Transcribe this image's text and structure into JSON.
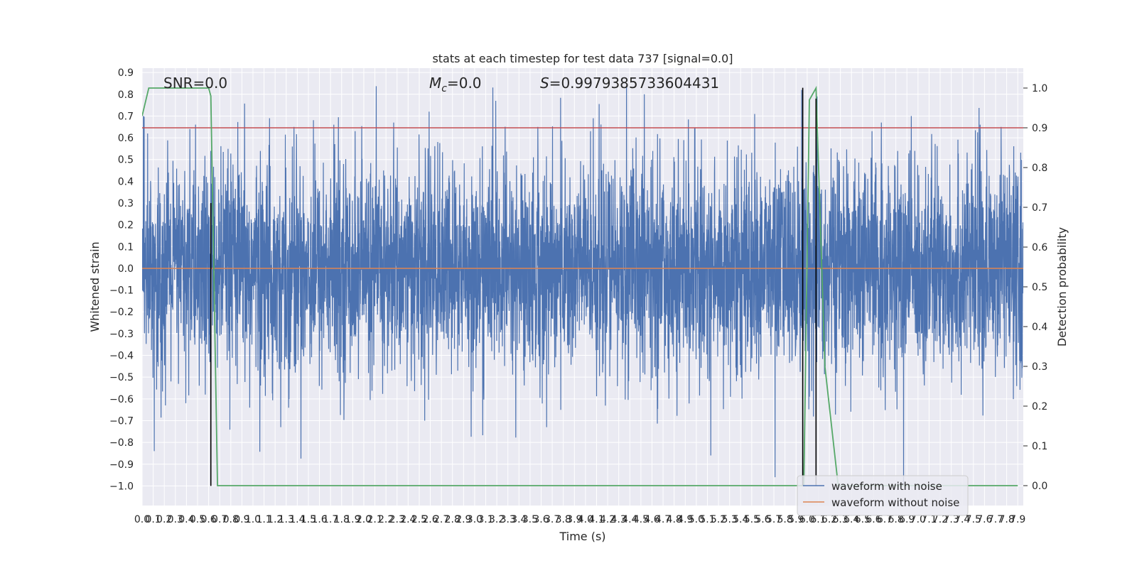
{
  "chart_data": {
    "type": "line",
    "title": "stats at each timestep for test data 737 [signal=0.0]",
    "xlabel": "Time (s)",
    "ylabel": "Whitened strain",
    "ylabel_right": "Detection probability",
    "xlim": [
      0.0,
      7.95
    ],
    "ylim": [
      -1.09,
      0.92
    ],
    "ylim_right": [
      -0.05,
      1.05
    ],
    "x_ticks": [
      "0.0",
      "0.1",
      "0.2",
      "0.3",
      "0.4",
      "0.5",
      "0.6",
      "0.7",
      "0.8",
      "0.9",
      "1.0",
      "1.1",
      "1.2",
      "1.3",
      "1.4",
      "1.5",
      "1.6",
      "1.7",
      "1.8",
      "1.9",
      "2.0",
      "2.1",
      "2.2",
      "2.3",
      "2.4",
      "2.5",
      "2.6",
      "2.7",
      "2.8",
      "2.9",
      "3.0",
      "3.1",
      "3.2",
      "3.3",
      "3.4",
      "3.5",
      "3.6",
      "3.7",
      "3.8",
      "3.9",
      "4.0",
      "4.1",
      "4.2",
      "4.3",
      "4.4",
      "4.5",
      "4.6",
      "4.7",
      "4.8",
      "4.9",
      "5.0",
      "5.1",
      "5.2",
      "5.3",
      "5.4",
      "5.5",
      "5.6",
      "5.7",
      "5.8",
      "5.9",
      "6.0",
      "6.1",
      "6.2",
      "6.3",
      "6.4",
      "6.5",
      "6.6",
      "6.7",
      "6.8",
      "6.9",
      "7.0",
      "7.1",
      "7.2",
      "7.3",
      "7.4",
      "7.5",
      "7.6",
      "7.7",
      "7.8",
      "7.9"
    ],
    "y_ticks_left": [
      "0.9",
      "0.8",
      "0.7",
      "0.6",
      "0.5",
      "0.4",
      "0.3",
      "0.2",
      "0.1",
      "0.0",
      "−0.1",
      "−0.2",
      "−0.3",
      "−0.4",
      "−0.5",
      "−0.6",
      "−0.7",
      "−0.8",
      "−0.9",
      "−1.0"
    ],
    "y_ticks_right": [
      "1.0",
      "0.9",
      "0.8",
      "0.7",
      "0.6",
      "0.5",
      "0.4",
      "0.3",
      "0.2",
      "0.1",
      "0.0"
    ],
    "annotations": {
      "snr": "SNR=0.0",
      "mc_symbol": "M",
      "mc_subscript": "c",
      "mc_value": "=0.0",
      "s_symbol": "S",
      "s_value": "=0.9979385733604431"
    },
    "legend": {
      "placement": "lower-right",
      "entries": [
        "waveform with noise",
        "waveform without noise"
      ]
    },
    "series": [
      {
        "name": "waveform with noise",
        "axis": "left",
        "color": "#4c72b0",
        "style": "noise",
        "typical_amplitude": 0.28,
        "peaks": [
          {
            "x": 0.05,
            "y": 0.62
          },
          {
            "x": 0.11,
            "y": -0.84
          },
          {
            "x": 0.21,
            "y": -0.63
          },
          {
            "x": 0.43,
            "y": 0.64
          },
          {
            "x": 0.62,
            "y": 0.54
          },
          {
            "x": 0.57,
            "y": -0.58
          },
          {
            "x": 0.97,
            "y": -0.64
          },
          {
            "x": 1.15,
            "y": 0.69
          },
          {
            "x": 1.25,
            "y": -0.73
          },
          {
            "x": 1.37,
            "y": 0.65
          },
          {
            "x": 1.73,
            "y": 0.66
          },
          {
            "x": 2.27,
            "y": 0.67
          },
          {
            "x": 2.55,
            "y": -0.7
          },
          {
            "x": 2.59,
            "y": 0.72
          },
          {
            "x": 3.19,
            "y": 0.77
          },
          {
            "x": 3.57,
            "y": 0.65
          },
          {
            "x": 3.65,
            "y": -0.73
          },
          {
            "x": 4.07,
            "y": 0.69
          },
          {
            "x": 4.37,
            "y": 0.84
          },
          {
            "x": 4.53,
            "y": 0.8
          },
          {
            "x": 5.13,
            "y": -0.86
          },
          {
            "x": 5.71,
            "y": -0.96
          },
          {
            "x": 5.95,
            "y": 0.82
          },
          {
            "x": 6.02,
            "y": -0.59
          },
          {
            "x": 6.09,
            "y": 0.79
          },
          {
            "x": 6.67,
            "y": 0.67
          },
          {
            "x": 6.87,
            "y": -0.99
          },
          {
            "x": 6.94,
            "y": 0.7
          },
          {
            "x": 7.56,
            "y": 0.66
          },
          {
            "x": 7.75,
            "y": 0.65
          }
        ]
      },
      {
        "name": "waveform without noise",
        "axis": "left",
        "color": "#dd8452",
        "x": [
          0.0,
          7.95
        ],
        "y": [
          0.0,
          0.0
        ]
      },
      {
        "name": "",
        "axis": "right",
        "color": "#55a868",
        "x": [
          0.0,
          0.06,
          0.2,
          0.6,
          0.62,
          0.68,
          5.95,
          5.97,
          6.02,
          6.08,
          6.16,
          6.28,
          7.9
        ],
        "y": [
          0.93,
          1.0,
          1.0,
          1.0,
          0.98,
          0.0,
          0.0,
          0.0,
          0.97,
          1.0,
          0.3,
          0.0,
          0.0
        ]
      }
    ],
    "reference_lines": {
      "threshold_right": {
        "value": 0.9,
        "color": "#c44e52"
      },
      "vertical_markers": [
        {
          "x": 0.62,
          "ymin": -1.0,
          "ymax": 0.3,
          "color": "#000000"
        },
        {
          "x": 5.96,
          "ymin": -1.0,
          "ymax": 0.83,
          "color": "#000000"
        },
        {
          "x": 6.08,
          "ymin": -1.0,
          "ymax": 0.78,
          "color": "#000000"
        }
      ]
    },
    "grid": true,
    "colors": {
      "axes_background": "#eaeaf2",
      "grid": "#ffffff",
      "text": "#262626"
    }
  }
}
